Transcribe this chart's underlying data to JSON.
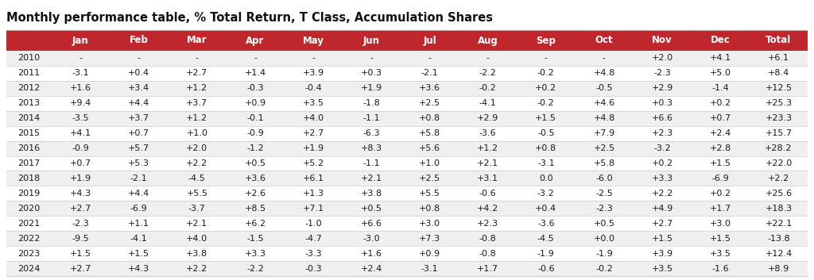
{
  "title": "Monthly performance table, % Total Return, T Class, Accumulation Shares",
  "columns": [
    "",
    "Jan",
    "Feb",
    "Mar",
    "Apr",
    "May",
    "Jun",
    "Jul",
    "Aug",
    "Sep",
    "Oct",
    "Nov",
    "Dec",
    "Total"
  ],
  "rows": [
    [
      "2010",
      "-",
      "-",
      "-",
      "-",
      "-",
      "-",
      "-",
      "-",
      "-",
      "-",
      "+2.0",
      "+4.1",
      "+6.1"
    ],
    [
      "2011",
      "-3.1",
      "+0.4",
      "+2.7",
      "+1.4",
      "+3.9",
      "+0.3",
      "-2.1",
      "-2.2",
      "-0.2",
      "+4.8",
      "-2.3",
      "+5.0",
      "+8.4"
    ],
    [
      "2012",
      "+1.6",
      "+3.4",
      "+1.2",
      "-0.3",
      "-0.4",
      "+1.9",
      "+3.6",
      "-0.2",
      "+0.2",
      "-0.5",
      "+2.9",
      "-1.4",
      "+12.5"
    ],
    [
      "2013",
      "+9.4",
      "+4.4",
      "+3.7",
      "+0.9",
      "+3.5",
      "-1.8",
      "+2.5",
      "-4.1",
      "-0.2",
      "+4.6",
      "+0.3",
      "+0.2",
      "+25.3"
    ],
    [
      "2014",
      "-3.5",
      "+3.7",
      "+1.2",
      "-0.1",
      "+4.0",
      "-1.1",
      "+0.8",
      "+2.9",
      "+1.5",
      "+4.8",
      "+6.6",
      "+0.7",
      "+23.3"
    ],
    [
      "2015",
      "+4.1",
      "+0.7",
      "+1.0",
      "-0.9",
      "+2.7",
      "-6.3",
      "+5.8",
      "-3.6",
      "-0.5",
      "+7.9",
      "+2.3",
      "+2.4",
      "+15.7"
    ],
    [
      "2016",
      "-0.9",
      "+5.7",
      "+2.0",
      "-1.2",
      "+1.9",
      "+8.3",
      "+5.6",
      "+1.2",
      "+0.8",
      "+2.5",
      "-3.2",
      "+2.8",
      "+28.2"
    ],
    [
      "2017",
      "+0.7",
      "+5.3",
      "+2.2",
      "+0.5",
      "+5.2",
      "-1.1",
      "+1.0",
      "+2.1",
      "-3.1",
      "+5.8",
      "+0.2",
      "+1.5",
      "+22.0"
    ],
    [
      "2018",
      "+1.9",
      "-2.1",
      "-4.5",
      "+3.6",
      "+6.1",
      "+2.1",
      "+2.5",
      "+3.1",
      "0.0",
      "-6.0",
      "+3.3",
      "-6.9",
      "+2.2"
    ],
    [
      "2019",
      "+4.3",
      "+4.4",
      "+5.5",
      "+2.6",
      "+1.3",
      "+3.8",
      "+5.5",
      "-0.6",
      "-3.2",
      "-2.5",
      "+2.2",
      "+0.2",
      "+25.6"
    ],
    [
      "2020",
      "+2.7",
      "-6.9",
      "-3.7",
      "+8.5",
      "+7.1",
      "+0.5",
      "+0.8",
      "+4.2",
      "+0.4",
      "-2.3",
      "+4.9",
      "+1.7",
      "+18.3"
    ],
    [
      "2021",
      "-2.3",
      "+1.1",
      "+2.1",
      "+6.2",
      "-1.0",
      "+6.6",
      "+3.0",
      "+2.3",
      "-3.6",
      "+0.5",
      "+2.7",
      "+3.0",
      "+22.1"
    ],
    [
      "2022",
      "-9.5",
      "-4.1",
      "+4.0",
      "-1.5",
      "-4.7",
      "-3.0",
      "+7.3",
      "-0.8",
      "-4.5",
      "+0.0",
      "+1.5",
      "+1.5",
      "-13.8"
    ],
    [
      "2023",
      "+1.5",
      "+1.5",
      "+3.8",
      "+3.3",
      "-3.3",
      "+1.6",
      "+0.9",
      "-0.8",
      "-1.9",
      "-1.9",
      "+3.9",
      "+3.5",
      "+12.4"
    ],
    [
      "2024",
      "+2.7",
      "+4.3",
      "+2.2",
      "-2.2",
      "-0.3",
      "+2.4",
      "-3.1",
      "+1.7",
      "-0.6",
      "-0.2",
      "+3.5",
      "-1.6",
      "+8.9"
    ]
  ],
  "header_bg": "#c0272d",
  "header_fg": "#ffffff",
  "row_bg_even": "#efefef",
  "row_bg_odd": "#ffffff",
  "text_color": "#1a1a1a",
  "title_color": "#111111",
  "divider_color": "#cccccc",
  "title_fontsize": 10.5,
  "header_fontsize": 8.5,
  "cell_fontsize": 8.0,
  "fig_width": 10.24,
  "fig_height": 3.53,
  "dpi": 100
}
